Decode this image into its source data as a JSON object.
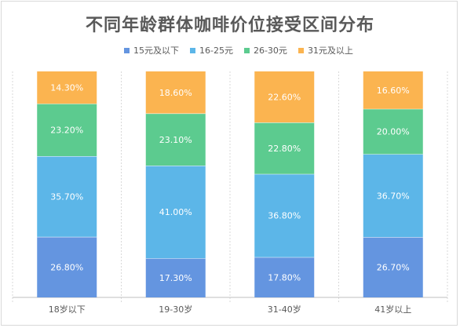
{
  "chart_data": {
    "type": "bar",
    "stacked": true,
    "title": "不同年龄群体咖啡价位接受区间分布",
    "categories": [
      "18岁以下",
      "19-30岁",
      "31-40岁",
      "41岁以上"
    ],
    "series": [
      {
        "name": "15元及以下",
        "color": "#6495e0",
        "values": [
          26.8,
          17.3,
          17.8,
          26.7
        ],
        "labels": [
          "26.80%",
          "17.30%",
          "17.80%",
          "26.70%"
        ]
      },
      {
        "name": "16-25元",
        "color": "#5cb6e8",
        "values": [
          35.7,
          41.0,
          36.8,
          36.7
        ],
        "labels": [
          "35.70%",
          "41.00%",
          "36.80%",
          "36.70%"
        ]
      },
      {
        "name": "26-30元",
        "color": "#5ccb8f",
        "values": [
          23.2,
          23.1,
          22.8,
          20.0
        ],
        "labels": [
          "23.20%",
          "23.10%",
          "22.80%",
          "20.00%"
        ]
      },
      {
        "name": "31元及以上",
        "color": "#fbb450",
        "values": [
          14.3,
          18.6,
          22.6,
          16.6
        ],
        "labels": [
          "14.30%",
          "18.60%",
          "22.60%",
          "16.60%"
        ]
      }
    ],
    "ylim": [
      0,
      100
    ],
    "grid": false,
    "legend_position": "top"
  }
}
